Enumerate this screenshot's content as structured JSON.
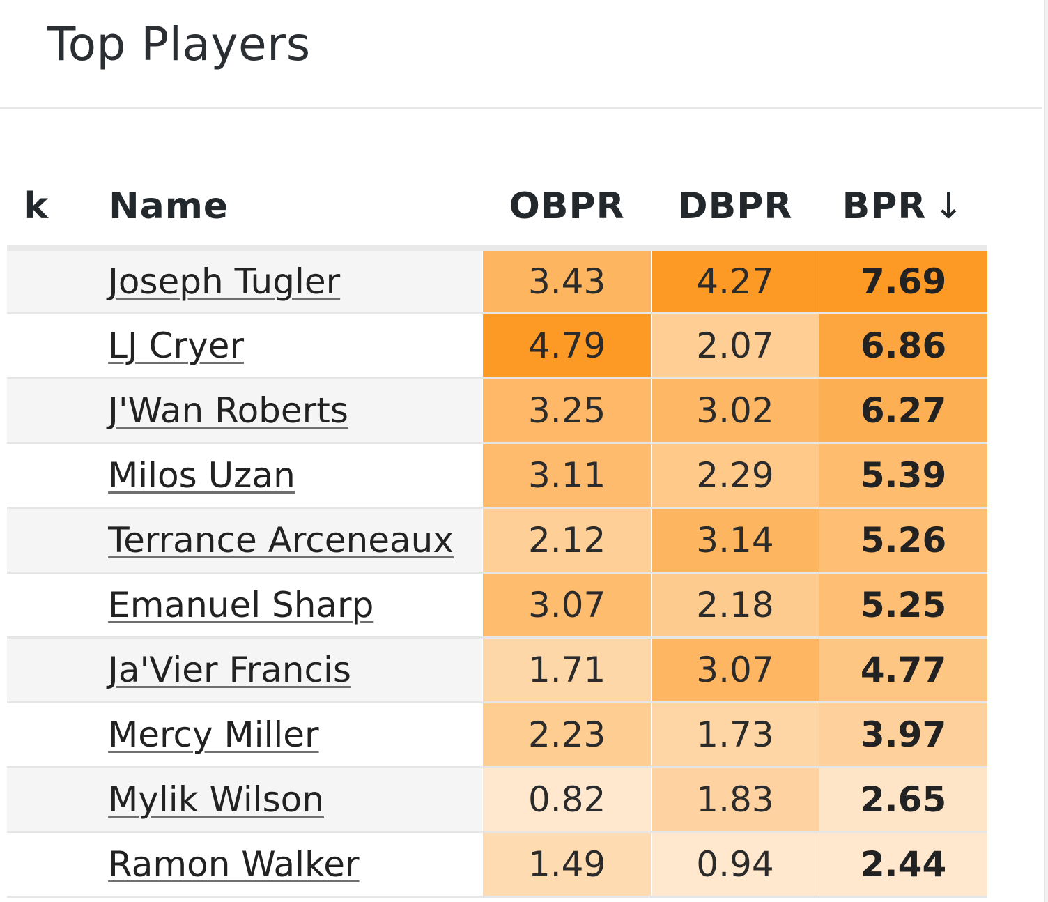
{
  "header": {
    "title": "Top Players"
  },
  "table": {
    "columns": {
      "rank": "k",
      "name": "Name",
      "obpr": "OBPR",
      "dbpr": "DBPR",
      "bpr": "BPR",
      "sort_indicator": "↓"
    },
    "color_scale": {
      "low": "#fff3e4",
      "high": "#fd9a26"
    },
    "rows": [
      {
        "name": "Joseph Tugler",
        "obpr": "3.43",
        "dbpr": "4.27",
        "bpr": "7.69"
      },
      {
        "name": "LJ Cryer",
        "obpr": "4.79",
        "dbpr": "2.07",
        "bpr": "6.86"
      },
      {
        "name": "J'Wan Roberts",
        "obpr": "3.25",
        "dbpr": "3.02",
        "bpr": "6.27"
      },
      {
        "name": "Milos Uzan",
        "obpr": "3.11",
        "dbpr": "2.29",
        "bpr": "5.39"
      },
      {
        "name": "Terrance Arceneaux",
        "obpr": "2.12",
        "dbpr": "3.14",
        "bpr": "5.26"
      },
      {
        "name": "Emanuel Sharp",
        "obpr": "3.07",
        "dbpr": "2.18",
        "bpr": "5.25"
      },
      {
        "name": "Ja'Vier Francis",
        "obpr": "1.71",
        "dbpr": "3.07",
        "bpr": "4.77"
      },
      {
        "name": "Mercy Miller",
        "obpr": "2.23",
        "dbpr": "1.73",
        "bpr": "3.97"
      },
      {
        "name": "Mylik Wilson",
        "obpr": "0.82",
        "dbpr": "1.83",
        "bpr": "2.65"
      },
      {
        "name": "Ramon Walker",
        "obpr": "1.49",
        "dbpr": "0.94",
        "bpr": "2.44"
      }
    ]
  }
}
